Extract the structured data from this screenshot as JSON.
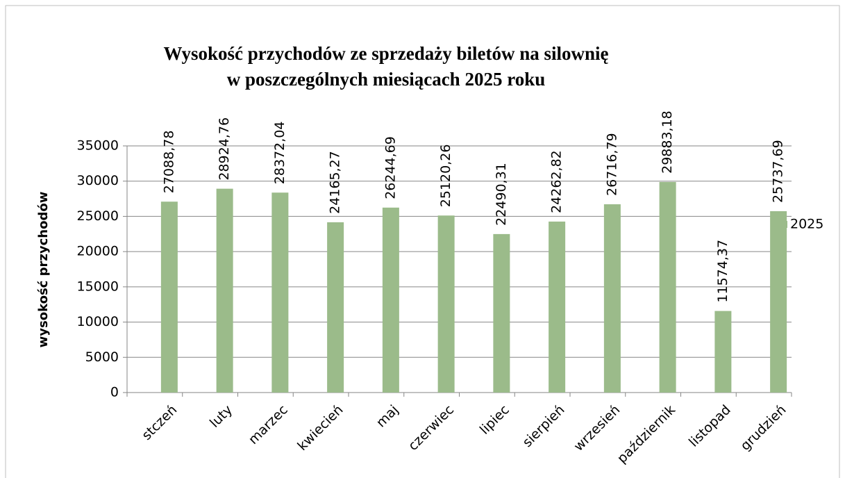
{
  "chart_data": {
    "type": "bar",
    "title": [
      "Wysokość przychodów ze sprzedaży biletów na silownię",
      "w poszczególnych miesiącach 2025 roku"
    ],
    "y_label": "wysokość przychodów",
    "categories": [
      "stczeń",
      "luty",
      "marzec",
      "kwiecień",
      "maj",
      "czerwiec",
      "lipiec",
      "sierpień",
      "wrzesień",
      "październik",
      "listopad",
      "grudzień"
    ],
    "series": [
      {
        "name": "2025",
        "color": "#9bbb8a",
        "values": [
          27088.78,
          28924.76,
          28372.04,
          24165.27,
          26244.69,
          25120.26,
          22490.31,
          24262.82,
          26716.79,
          29883.18,
          11574.37,
          25737.69
        ],
        "value_labels": [
          "27088,78",
          "28924,76",
          "28372,04",
          "24165,27",
          "26244,69",
          "25120,26",
          "22490,31",
          "24262,82",
          "26716,79",
          "29883,18",
          "11574,37",
          "25737,69"
        ]
      }
    ],
    "ylim": [
      0,
      35000
    ],
    "yticks": [
      0,
      5000,
      10000,
      15000,
      20000,
      25000,
      30000,
      35000
    ],
    "grid": true,
    "legend": "right"
  }
}
